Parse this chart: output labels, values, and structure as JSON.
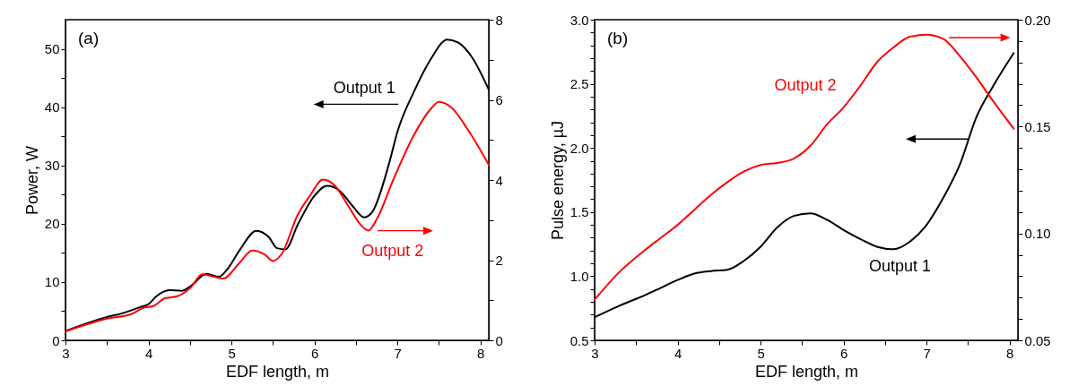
{
  "chart_data": [
    {
      "type": "line",
      "xlabel": "EDF length, m",
      "ylabel": "Power, W",
      "annotations": [
        "(a)"
      ],
      "line_style": "solid",
      "xlim": [
        3,
        8.1
      ],
      "xticks": [
        3,
        {
          "value": 3.5,
          "label": null
        },
        4,
        {
          "value": 4.5,
          "label": null
        },
        5,
        {
          "value": 5.5,
          "label": null
        },
        6,
        {
          "value": 6.5,
          "label": null
        },
        7,
        {
          "value": 7.5,
          "label": null
        },
        8
      ],
      "ylim": [
        0,
        55
      ],
      "yticks": [
        0,
        {
          "value": 5,
          "label": null
        },
        10,
        {
          "value": 15,
          "label": null
        },
        20,
        {
          "value": 25,
          "label": null
        },
        30,
        {
          "value": 35,
          "label": null
        },
        40,
        {
          "value": 45,
          "label": null
        },
        50
      ],
      "y2lim": [
        0,
        8
      ],
      "y2ticks": [
        0,
        {
          "value": 1,
          "label": null
        },
        2,
        {
          "value": 3,
          "label": null
        },
        4,
        {
          "value": 5,
          "label": null
        },
        6,
        {
          "value": 7,
          "label": null
        },
        8
      ],
      "series": [
        {
          "name": "Output 1",
          "color": "#000000",
          "x": [
            3,
            3.5,
            3.7,
            3.9,
            4,
            4.1,
            4.25,
            4.4,
            4.5,
            4.7,
            4.85,
            4.95,
            5.1,
            5.3,
            5.45,
            5.55,
            5.65,
            5.8,
            6,
            6.15,
            6.3,
            6.45,
            6.6,
            6.7,
            6.9,
            7,
            7.2,
            7.4,
            7.6,
            7.75,
            7.9,
            8.1
          ],
          "values": [
            1.6,
            4,
            4.7,
            5.7,
            6.2,
            7.6,
            8.6,
            8.5,
            9.2,
            11.4,
            10.9,
            12.2,
            15.5,
            18.8,
            17.7,
            15.8,
            15.6,
            19.9,
            24.8,
            26.5,
            25.7,
            23.2,
            21.1,
            22.1,
            30.4,
            35.8,
            42.7,
            48.2,
            51.6,
            50.9,
            48.5,
            43
          ]
        },
        {
          "name": "Output 2",
          "color": "#ff0000",
          "axis": "y2",
          "x": [
            3,
            3.5,
            3.8,
            3.95,
            4.05,
            4.2,
            4.35,
            4.5,
            4.65,
            4.8,
            4.9,
            5.1,
            5.25,
            5.4,
            5.5,
            5.6,
            5.8,
            5.95,
            6.1,
            6.25,
            6.4,
            6.55,
            6.65,
            6.75,
            6.95,
            7.2,
            7.4,
            7.5,
            7.65,
            7.85,
            8.1
          ],
          "values": [
            0.22,
            0.54,
            0.66,
            0.82,
            0.85,
            1.05,
            1.1,
            1.3,
            1.65,
            1.58,
            1.54,
            1.94,
            2.24,
            2.14,
            1.98,
            2.14,
            3.14,
            3.62,
            4.01,
            3.85,
            3.38,
            2.9,
            2.74,
            3.02,
            4.01,
            5.13,
            5.77,
            5.95,
            5.81,
            5.25,
            4.38
          ]
        }
      ]
    },
    {
      "type": "line",
      "xlabel": "EDF length, m",
      "ylabel": "Pulse energy, µJ",
      "annotations": [
        "(b)"
      ],
      "line_style": "solid",
      "xlim": [
        3,
        8.1
      ],
      "xticks": [
        3,
        {
          "value": 3.5,
          "label": null
        },
        4,
        {
          "value": 4.5,
          "label": null
        },
        5,
        {
          "value": 5.5,
          "label": null
        },
        6,
        {
          "value": 6.5,
          "label": null
        },
        7,
        {
          "value": 7.5,
          "label": null
        },
        8
      ],
      "ylim": [
        0.5,
        3
      ],
      "yticks": [
        0.5,
        {
          "value": 0.6,
          "label": null
        },
        {
          "value": 0.7,
          "label": null
        },
        {
          "value": 0.8,
          "label": null
        },
        {
          "value": 0.9,
          "label": null
        },
        {
          "value": 1,
          "label": "1.0"
        },
        {
          "value": 1.1,
          "label": null
        },
        {
          "value": 1.2,
          "label": null
        },
        {
          "value": 1.3,
          "label": null
        },
        {
          "value": 1.4,
          "label": null
        },
        1.5,
        {
          "value": 1.6,
          "label": null
        },
        {
          "value": 1.7,
          "label": null
        },
        {
          "value": 1.8,
          "label": null
        },
        {
          "value": 1.9,
          "label": null
        },
        {
          "value": 2,
          "label": "2.0"
        },
        {
          "value": 2.1,
          "label": null
        },
        {
          "value": 2.2,
          "label": null
        },
        {
          "value": 2.3,
          "label": null
        },
        {
          "value": 2.4,
          "label": null
        },
        2.5,
        {
          "value": 2.6,
          "label": null
        },
        {
          "value": 2.7,
          "label": null
        },
        {
          "value": 2.8,
          "label": null
        },
        {
          "value": 2.9,
          "label": null
        },
        {
          "value": 3,
          "label": "3.0"
        }
      ],
      "y2lim": [
        0.05,
        0.2
      ],
      "y2ticks": [
        0.05,
        {
          "value": 0.06,
          "label": null
        },
        {
          "value": 0.07,
          "label": null
        },
        {
          "value": 0.08,
          "label": null
        },
        {
          "value": 0.09,
          "label": null
        },
        {
          "value": 0.1,
          "label": "0.10"
        },
        {
          "value": 0.11,
          "label": null
        },
        {
          "value": 0.12,
          "label": null
        },
        {
          "value": 0.13,
          "label": null
        },
        {
          "value": 0.14,
          "label": null
        },
        0.15,
        {
          "value": 0.16,
          "label": null
        },
        {
          "value": 0.17,
          "label": null
        },
        {
          "value": 0.18,
          "label": null
        },
        {
          "value": 0.19,
          "label": null
        },
        {
          "value": 0.2,
          "label": "0.20"
        }
      ],
      "series": [
        {
          "name": "Output 1",
          "color": "#000000",
          "x": [
            3,
            3.3,
            3.6,
            3.8,
            4,
            4.2,
            4.4,
            4.6,
            4.8,
            5,
            5.2,
            5.4,
            5.6,
            5.8,
            6,
            6.2,
            6.4,
            6.6,
            6.8,
            7,
            7.2,
            7.4,
            7.6,
            7.8,
            8.05
          ],
          "values": [
            0.68,
            0.77,
            0.85,
            0.91,
            0.97,
            1.02,
            1.04,
            1.05,
            1.12,
            1.23,
            1.38,
            1.47,
            1.49,
            1.44,
            1.36,
            1.29,
            1.23,
            1.21,
            1.27,
            1.4,
            1.61,
            1.87,
            2.24,
            2.48,
            2.74
          ]
        },
        {
          "name": "Output 2",
          "color": "#ff0000",
          "axis": "y2",
          "x": [
            3,
            3.3,
            3.6,
            3.8,
            4,
            4.2,
            4.4,
            4.6,
            4.8,
            5,
            5.2,
            5.4,
            5.6,
            5.8,
            6,
            6.2,
            6.4,
            6.6,
            6.8,
            7,
            7.2,
            7.4,
            7.6,
            7.8,
            8.05
          ],
          "values": [
            0.069,
            0.082,
            0.092,
            0.098,
            0.104,
            0.111,
            0.118,
            0.124,
            0.129,
            0.132,
            0.133,
            0.135,
            0.141,
            0.151,
            0.159,
            0.169,
            0.18,
            0.187,
            0.192,
            0.193,
            0.191,
            0.183,
            0.173,
            0.162,
            0.149
          ]
        }
      ]
    }
  ]
}
